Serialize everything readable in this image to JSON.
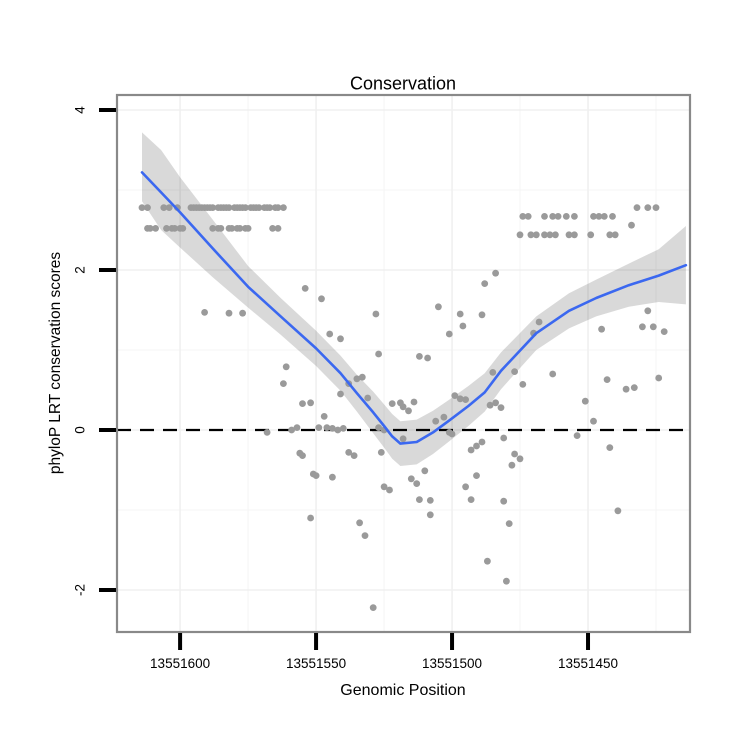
{
  "chart_data": {
    "type": "scatter",
    "title": "Conservation",
    "xlabel": "Genomic Position",
    "ylabel": "phyloP LRT conservation scores",
    "x_reversed": true,
    "xlim": [
      13551623.2,
      13551412.5
    ],
    "ylim": [
      -2.525,
      4.1875
    ],
    "x_ticks": [
      13551600,
      13551550,
      13551500,
      13551450
    ],
    "x_minor_ticks": [
      13551575,
      13551525,
      13551475,
      13551425
    ],
    "y_ticks": [
      4,
      2,
      0,
      -2
    ],
    "y_minor_ticks": [
      3,
      1,
      -1
    ],
    "zero_line": {
      "y": 0,
      "style": "dashed"
    },
    "grid": true,
    "legend": "none",
    "colors": {
      "point": "#9a9a9a",
      "smooth_line": "#3b68f0",
      "band": "rgba(0,0,0,0.15)",
      "zero_line": "#000000",
      "panel_border": "#898989",
      "grid_major": "#f0f0f0",
      "grid_minor": "#f6f6f6",
      "tick": "#000000",
      "text": "#000000",
      "background": "#ffffff"
    },
    "points": [
      [
        13551614,
        2.78
      ],
      [
        13551612,
        2.78
      ],
      [
        13551606,
        2.78
      ],
      [
        13551604,
        2.78
      ],
      [
        13551601,
        2.78
      ],
      [
        13551596,
        2.78
      ],
      [
        13551595,
        2.78
      ],
      [
        13551594,
        2.78
      ],
      [
        13551593,
        2.78
      ],
      [
        13551592,
        2.78
      ],
      [
        13551591,
        2.78
      ],
      [
        13551590,
        2.78
      ],
      [
        13551589,
        2.78
      ],
      [
        13551588,
        2.78
      ],
      [
        13551586,
        2.78
      ],
      [
        13551585,
        2.78
      ],
      [
        13551584,
        2.78
      ],
      [
        13551583,
        2.78
      ],
      [
        13551582,
        2.78
      ],
      [
        13551580,
        2.78
      ],
      [
        13551579,
        2.78
      ],
      [
        13551578,
        2.78
      ],
      [
        13551577,
        2.78
      ],
      [
        13551576,
        2.78
      ],
      [
        13551574,
        2.78
      ],
      [
        13551573,
        2.78
      ],
      [
        13551572,
        2.78
      ],
      [
        13551571,
        2.78
      ],
      [
        13551569,
        2.78
      ],
      [
        13551568,
        2.78
      ],
      [
        13551567,
        2.78
      ],
      [
        13551565,
        2.78
      ],
      [
        13551564,
        2.78
      ],
      [
        13551562,
        2.78
      ],
      [
        13551612,
        2.52
      ],
      [
        13551611,
        2.52
      ],
      [
        13551609,
        2.52
      ],
      [
        13551605,
        2.52
      ],
      [
        13551603,
        2.52
      ],
      [
        13551602,
        2.52
      ],
      [
        13551600,
        2.52
      ],
      [
        13551599,
        2.52
      ],
      [
        13551588,
        2.52
      ],
      [
        13551586,
        2.52
      ],
      [
        13551585,
        2.52
      ],
      [
        13551582,
        2.52
      ],
      [
        13551581,
        2.52
      ],
      [
        13551579,
        2.52
      ],
      [
        13551578,
        2.52
      ],
      [
        13551576,
        2.52
      ],
      [
        13551575,
        2.52
      ],
      [
        13551566,
        2.52
      ],
      [
        13551564,
        2.52
      ],
      [
        13551474,
        2.67
      ],
      [
        13551472,
        2.67
      ],
      [
        13551466,
        2.67
      ],
      [
        13551463,
        2.67
      ],
      [
        13551461,
        2.67
      ],
      [
        13551458,
        2.67
      ],
      [
        13551455,
        2.67
      ],
      [
        13551448,
        2.67
      ],
      [
        13551446,
        2.67
      ],
      [
        13551444,
        2.67
      ],
      [
        13551441,
        2.67
      ],
      [
        13551475,
        2.44
      ],
      [
        13551471,
        2.44
      ],
      [
        13551469,
        2.44
      ],
      [
        13551466,
        2.44
      ],
      [
        13551464,
        2.44
      ],
      [
        13551462,
        2.44
      ],
      [
        13551457,
        2.44
      ],
      [
        13551455,
        2.44
      ],
      [
        13551449,
        2.44
      ],
      [
        13551442,
        2.44
      ],
      [
        13551440,
        2.44
      ],
      [
        13551432,
        2.78
      ],
      [
        13551428,
        2.78
      ],
      [
        13551425,
        2.78
      ],
      [
        13551434,
        2.56
      ],
      [
        13551591,
        1.47
      ],
      [
        13551582,
        1.46
      ],
      [
        13551577,
        1.46
      ],
      [
        13551554,
        1.77
      ],
      [
        13551548,
        1.64
      ],
      [
        13551545,
        1.2
      ],
      [
        13551541,
        1.14
      ],
      [
        13551528,
        1.45
      ],
      [
        13551505,
        1.54
      ],
      [
        13551501,
        1.2
      ],
      [
        13551497,
        1.45
      ],
      [
        13551496,
        1.3
      ],
      [
        13551489,
        1.44
      ],
      [
        13551488,
        1.83
      ],
      [
        13551484,
        1.96
      ],
      [
        13551470,
        1.21
      ],
      [
        13551468,
        1.35
      ],
      [
        13551445,
        1.26
      ],
      [
        13551430,
        1.29
      ],
      [
        13551428,
        1.49
      ],
      [
        13551426,
        1.29
      ],
      [
        13551422,
        1.23
      ],
      [
        13551562,
        0.58
      ],
      [
        13551561,
        0.79
      ],
      [
        13551538,
        0.58
      ],
      [
        13551535,
        0.64
      ],
      [
        13551533,
        0.66
      ],
      [
        13551527,
        0.95
      ],
      [
        13551512,
        0.92
      ],
      [
        13551509,
        0.9
      ],
      [
        13551485,
        0.72
      ],
      [
        13551477,
        0.73
      ],
      [
        13551474,
        0.57
      ],
      [
        13551463,
        0.7
      ],
      [
        13551451,
        0.36
      ],
      [
        13551443,
        0.63
      ],
      [
        13551436,
        0.51
      ],
      [
        13551433,
        0.53
      ],
      [
        13551424,
        0.65
      ],
      [
        13551555,
        0.33
      ],
      [
        13551552,
        0.34
      ],
      [
        13551549,
        0.03
      ],
      [
        13551547,
        0.17
      ],
      [
        13551546,
        0.03
      ],
      [
        13551544,
        0.02
      ],
      [
        13551542,
        0.0
      ],
      [
        13551541,
        0.45
      ],
      [
        13551540,
        0.02
      ],
      [
        13551531,
        0.4
      ],
      [
        13551527,
        0.03
      ],
      [
        13551525,
        0.0
      ],
      [
        13551522,
        0.33
      ],
      [
        13551519,
        0.34
      ],
      [
        13551518,
        0.29
      ],
      [
        13551516,
        0.24
      ],
      [
        13551514,
        0.35
      ],
      [
        13551506,
        0.11
      ],
      [
        13551503,
        0.16
      ],
      [
        13551499,
        0.43
      ],
      [
        13551497,
        0.39
      ],
      [
        13551495,
        0.38
      ],
      [
        13551486,
        0.31
      ],
      [
        13551484,
        0.34
      ],
      [
        13551482,
        0.28
      ],
      [
        13551559,
        0.0
      ],
      [
        13551557,
        0.03
      ],
      [
        13551448,
        0.11
      ],
      [
        13551568,
        -0.03
      ],
      [
        13551556,
        -0.29
      ],
      [
        13551555,
        -0.32
      ],
      [
        13551538,
        -0.28
      ],
      [
        13551536,
        -0.32
      ],
      [
        13551526,
        -0.28
      ],
      [
        13551518,
        -0.11
      ],
      [
        13551501,
        -0.03
      ],
      [
        13551500,
        -0.05
      ],
      [
        13551493,
        -0.25
      ],
      [
        13551491,
        -0.2
      ],
      [
        13551489,
        -0.15
      ],
      [
        13551481,
        -0.1
      ],
      [
        13551478,
        -0.44
      ],
      [
        13551477,
        -0.3
      ],
      [
        13551475,
        -0.36
      ],
      [
        13551454,
        -0.07
      ],
      [
        13551442,
        -0.22
      ],
      [
        13551551,
        -0.55
      ],
      [
        13551550,
        -0.57
      ],
      [
        13551544,
        -0.59
      ],
      [
        13551525,
        -0.71
      ],
      [
        13551523,
        -0.75
      ],
      [
        13551515,
        -0.61
      ],
      [
        13551513,
        -0.67
      ],
      [
        13551512,
        -0.87
      ],
      [
        13551510,
        -0.51
      ],
      [
        13551508,
        -0.88
      ],
      [
        13551495,
        -0.71
      ],
      [
        13551493,
        -0.87
      ],
      [
        13551491,
        -0.57
      ],
      [
        13551481,
        -0.89
      ],
      [
        13551552,
        -1.1
      ],
      [
        13551534,
        -1.16
      ],
      [
        13551532,
        -1.32
      ],
      [
        13551529,
        -2.22
      ],
      [
        13551508,
        -1.06
      ],
      [
        13551487,
        -1.64
      ],
      [
        13551480,
        -1.89
      ],
      [
        13551479,
        -1.17
      ],
      [
        13551439,
        -1.01
      ]
    ],
    "smooth": [
      [
        13551614,
        3.22,
        2.86,
        3.72
      ],
      [
        13551607,
        2.97,
        2.5,
        3.5
      ],
      [
        13551600,
        2.72,
        2.28,
        3.16
      ],
      [
        13551588,
        2.27,
        1.91,
        2.63
      ],
      [
        13551575,
        1.79,
        1.53,
        2.05
      ],
      [
        13551563,
        1.42,
        1.19,
        1.65
      ],
      [
        13551550,
        1.02,
        0.8,
        1.24
      ],
      [
        13551541,
        0.71,
        0.49,
        0.93
      ],
      [
        13551535,
        0.46,
        0.23,
        0.69
      ],
      [
        13551529,
        0.22,
        -0.04,
        0.48
      ],
      [
        13551525,
        0.05,
        -0.22,
        0.32
      ],
      [
        13551522,
        -0.08,
        -0.36,
        0.2
      ],
      [
        13551519,
        -0.17,
        -0.45,
        0.11
      ],
      [
        13551513,
        -0.15,
        -0.43,
        0.13
      ],
      [
        13551507,
        -0.03,
        -0.3,
        0.24
      ],
      [
        13551501,
        0.12,
        -0.14,
        0.38
      ],
      [
        13551494,
        0.3,
        0.05,
        0.55
      ],
      [
        13551488,
        0.47,
        0.23,
        0.71
      ],
      [
        13551482,
        0.74,
        0.51,
        0.97
      ],
      [
        13551469,
        1.21,
        1.0,
        1.42
      ],
      [
        13551457,
        1.49,
        1.27,
        1.71
      ],
      [
        13551447,
        1.65,
        1.42,
        1.88
      ],
      [
        13551435,
        1.81,
        1.54,
        2.08
      ],
      [
        13551424,
        1.93,
        1.6,
        2.26
      ],
      [
        13551414,
        2.06,
        1.57,
        2.55
      ]
    ]
  }
}
